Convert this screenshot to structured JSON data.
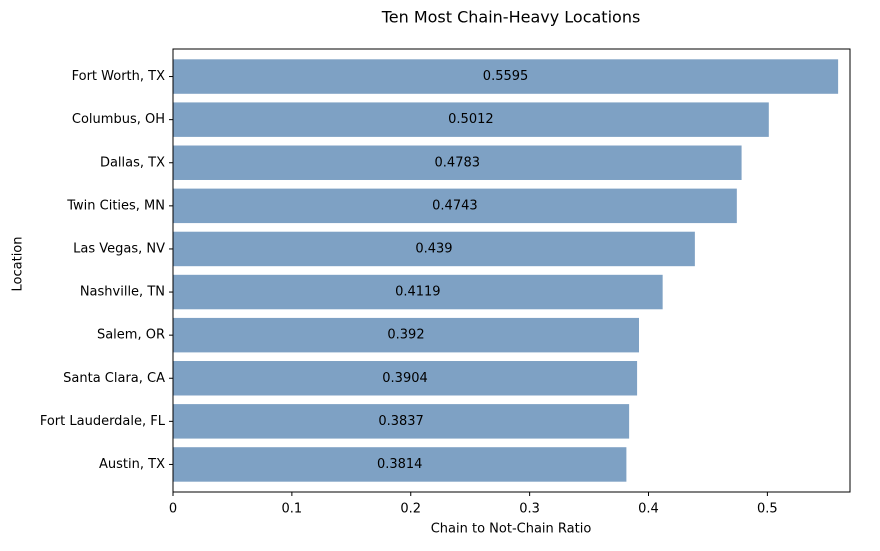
{
  "chart_data": {
    "type": "barh",
    "title": "Ten Most Chain-Heavy Locations",
    "x_label": "Chain to Not-Chain Ratio",
    "y_label": "Location",
    "categories": [
      "Fort Worth, TX",
      "Columbus, OH",
      "Dallas, TX",
      "Twin Cities, MN",
      "Las Vegas, NV",
      "Nashville, TN",
      "Salem, OR",
      "Santa Clara, CA",
      "Fort Lauderdale, FL",
      "Austin, TX"
    ],
    "values": [
      0.5595,
      0.5012,
      0.4783,
      0.4743,
      0.439,
      0.4119,
      0.392,
      0.3904,
      0.3837,
      0.3814
    ],
    "color": "#7ea1c4",
    "xlim": [
      0,
      0.5695
    ],
    "xticks": [
      0.0,
      0.1,
      0.2,
      0.3,
      0.4,
      0.5
    ]
  }
}
